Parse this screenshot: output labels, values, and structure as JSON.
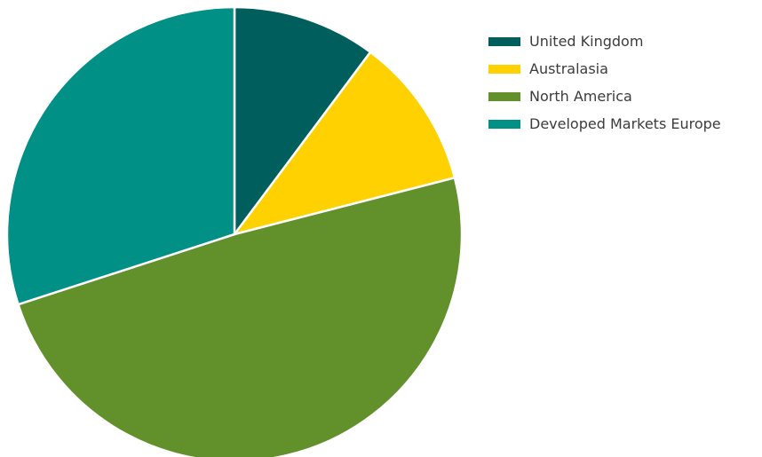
{
  "chart_data": {
    "type": "pie",
    "title": "",
    "start_angle_deg": 0,
    "direction": "clockwise",
    "slices": [
      {
        "label": "United Kingdom",
        "value": 10.2,
        "color": "#005e5d"
      },
      {
        "label": "Australasia",
        "value": 10.8,
        "color": "#ffd100"
      },
      {
        "label": "North America",
        "value": 49.0,
        "color": "#62902b"
      },
      {
        "label": "Developed Markets Europe",
        "value": 30.0,
        "color": "#009086"
      }
    ],
    "legend": {
      "position": "top-right",
      "entries": [
        "United Kingdom",
        "Australasia",
        "North America",
        "Developed Markets Europe"
      ]
    }
  }
}
